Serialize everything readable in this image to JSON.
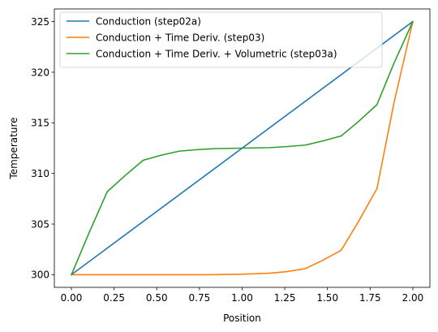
{
  "chart_data": {
    "type": "line",
    "title": "",
    "xlabel": "Position",
    "ylabel": "Temperature",
    "xlim": [
      -0.1,
      2.1
    ],
    "ylim": [
      298.75,
      326.25
    ],
    "xticks": [
      "0.00",
      "0.25",
      "0.50",
      "0.75",
      "1.00",
      "1.25",
      "1.50",
      "1.75",
      "2.00"
    ],
    "yticks": [
      "300",
      "305",
      "310",
      "315",
      "320",
      "325"
    ],
    "grid": false,
    "legend_position": "top-left",
    "series": [
      {
        "name": "Conduction (step02a)",
        "color": "#1f77b4",
        "x": [
          0.0,
          2.0
        ],
        "y": [
          300.0,
          325.0
        ]
      },
      {
        "name": "Conduction + Time Deriv. (step03)",
        "color": "#ff7f0e",
        "x": [
          0.0,
          0.2,
          0.5,
          0.8,
          1.0,
          1.16,
          1.26,
          1.37,
          1.47,
          1.58,
          1.68,
          1.79,
          1.89,
          2.0
        ],
        "y": [
          300.0,
          300.0,
          300.0,
          300.0,
          300.05,
          300.15,
          300.3,
          300.6,
          301.4,
          302.4,
          305.2,
          308.5,
          317.0,
          325.0
        ]
      },
      {
        "name": "Conduction + Time Deriv. + Volumetric (step03a)",
        "color": "#2ca02c",
        "x": [
          0.0,
          0.105,
          0.21,
          0.315,
          0.42,
          0.525,
          0.63,
          0.735,
          0.84,
          1.0,
          1.16,
          1.26,
          1.37,
          1.47,
          1.58,
          1.68,
          1.79,
          1.89,
          2.0
        ],
        "y": [
          300.0,
          304.2,
          308.2,
          309.8,
          311.3,
          311.8,
          312.2,
          312.35,
          312.45,
          312.5,
          312.55,
          312.65,
          312.8,
          313.2,
          313.7,
          315.1,
          316.8,
          320.9,
          325.0
        ]
      }
    ]
  }
}
